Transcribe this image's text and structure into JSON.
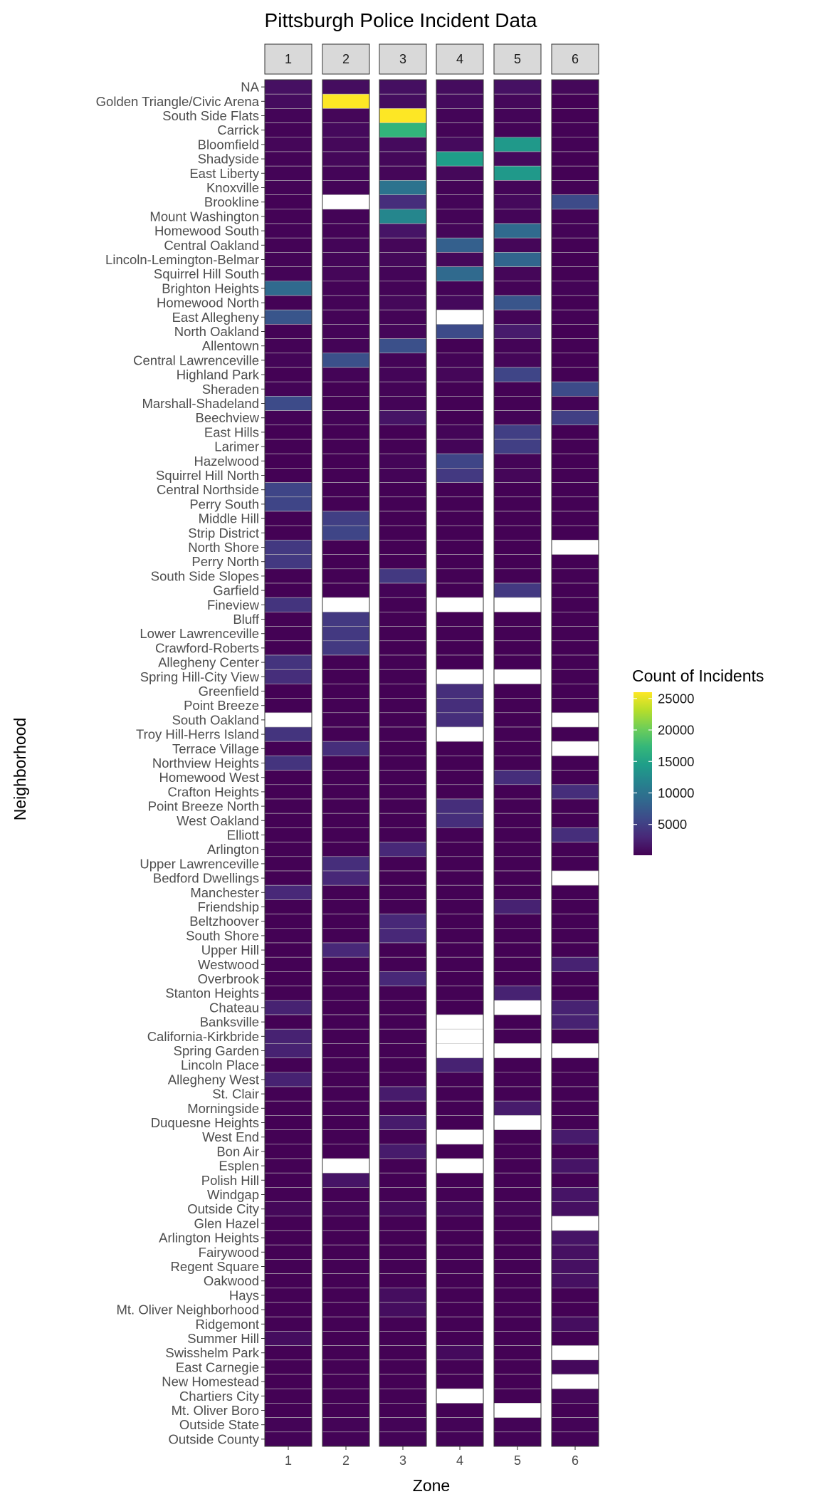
{
  "chart_data": {
    "type": "heatmap",
    "title": "Pittsburgh Police Incident Data",
    "xlabel": "Zone",
    "ylabel": "Neighborhood",
    "zones": [
      "1",
      "2",
      "3",
      "4",
      "5",
      "6"
    ],
    "neighborhoods": [
      "NA",
      "Golden Triangle/Civic Arena",
      "South Side Flats",
      "Carrick",
      "Bloomfield",
      "Shadyside",
      "East Liberty",
      "Knoxville",
      "Brookline",
      "Mount Washington",
      "Homewood South",
      "Central Oakland",
      "Lincoln-Lemington-Belmar",
      "Squirrel Hill South",
      "Brighton Heights",
      "Homewood North",
      "East Allegheny",
      "North Oakland",
      "Allentown",
      "Central Lawrenceville",
      "Highland Park",
      "Sheraden",
      "Marshall-Shadeland",
      "Beechview",
      "East Hills",
      "Larimer",
      "Hazelwood",
      "Squirrel Hill North",
      "Central Northside",
      "Perry South",
      "Middle Hill",
      "Strip District",
      "North Shore",
      "Perry North",
      "South Side Slopes",
      "Garfield",
      "Fineview",
      "Bluff",
      "Lower Lawrenceville",
      "Crawford-Roberts",
      "Allegheny Center",
      "Spring Hill-City View",
      "Greenfield",
      "Point Breeze",
      "South Oakland",
      "Troy Hill-Herrs Island",
      "Terrace Village",
      "Northview Heights",
      "Homewood West",
      "Crafton Heights",
      "Point Breeze North",
      "West Oakland",
      "Elliott",
      "Arlington",
      "Upper Lawrenceville",
      "Bedford Dwellings",
      "Manchester",
      "Friendship",
      "Beltzhoover",
      "South Shore",
      "Upper Hill",
      "Westwood",
      "Overbrook",
      "Stanton Heights",
      "Chateau",
      "Banksville",
      "California-Kirkbride",
      "Spring Garden",
      "Lincoln Place",
      "Allegheny West",
      "St. Clair",
      "Morningside",
      "Duquesne Heights",
      "West End",
      "Bon Air",
      "Esplen",
      "Polish Hill",
      "Windgap",
      "Outside City",
      "Glen Hazel",
      "Arlington Heights",
      "Fairywood",
      "Regent Square",
      "Oakwood",
      "Hays",
      "Mt. Oliver Neighborhood",
      "Ridgemont",
      "Summer Hill",
      "Swisshelm Park",
      "East Carnegie",
      "New Homestead",
      "Chartiers City",
      "Mt. Oliver Boro",
      "Outside State",
      "Outside County"
    ],
    "values": [
      [
        1200,
        1000,
        1100,
        900,
        1300,
        600
      ],
      [
        900,
        26000,
        1000,
        800,
        600,
        200
      ],
      [
        400,
        500,
        26000,
        400,
        400,
        150
      ],
      [
        300,
        700,
        17000,
        300,
        300,
        250
      ],
      [
        500,
        600,
        800,
        800,
        14000,
        250
      ],
      [
        350,
        600,
        600,
        14500,
        800,
        150
      ],
      [
        300,
        400,
        500,
        600,
        14000,
        200
      ],
      [
        300,
        400,
        10000,
        300,
        400,
        250
      ],
      [
        250,
        null,
        3500,
        400,
        700,
        6000
      ],
      [
        250,
        300,
        12000,
        300,
        400,
        250
      ],
      [
        300,
        350,
        1500,
        500,
        9000,
        300
      ],
      [
        250,
        400,
        500,
        8000,
        500,
        200
      ],
      [
        300,
        400,
        600,
        600,
        8500,
        200
      ],
      [
        350,
        500,
        400,
        9000,
        500,
        150
      ],
      [
        9000,
        300,
        300,
        300,
        300,
        300
      ],
      [
        250,
        300,
        600,
        700,
        7000,
        200
      ],
      [
        7000,
        300,
        300,
        null,
        400,
        250
      ],
      [
        250,
        300,
        500,
        6000,
        2000,
        150
      ],
      [
        250,
        300,
        6500,
        200,
        300,
        150
      ],
      [
        400,
        6500,
        300,
        300,
        500,
        150
      ],
      [
        200,
        300,
        400,
        500,
        5500,
        150
      ],
      [
        300,
        200,
        300,
        200,
        200,
        6000
      ],
      [
        6000,
        200,
        300,
        200,
        200,
        250
      ],
      [
        300,
        300,
        1500,
        200,
        300,
        5000
      ],
      [
        200,
        200,
        200,
        400,
        5000,
        150
      ],
      [
        200,
        200,
        200,
        400,
        5000,
        150
      ],
      [
        200,
        200,
        400,
        5500,
        300,
        150
      ],
      [
        200,
        200,
        300,
        4500,
        500,
        150
      ],
      [
        5500,
        200,
        200,
        200,
        200,
        200
      ],
      [
        5500,
        200,
        200,
        200,
        200,
        200
      ],
      [
        200,
        5000,
        200,
        200,
        200,
        150
      ],
      [
        200,
        5500,
        200,
        200,
        200,
        150
      ],
      [
        4500,
        200,
        200,
        200,
        200,
        null
      ],
      [
        4500,
        200,
        200,
        200,
        200,
        200
      ],
      [
        200,
        200,
        4500,
        200,
        200,
        200
      ],
      [
        200,
        200,
        300,
        200,
        4500,
        150
      ],
      [
        4000,
        null,
        200,
        null,
        null,
        200
      ],
      [
        200,
        4500,
        200,
        200,
        200,
        150
      ],
      [
        200,
        4500,
        200,
        200,
        200,
        150
      ],
      [
        200,
        4500,
        200,
        200,
        200,
        150
      ],
      [
        4000,
        200,
        200,
        200,
        200,
        150
      ],
      [
        3500,
        200,
        200,
        null,
        null,
        200
      ],
      [
        200,
        200,
        200,
        3500,
        200,
        150
      ],
      [
        200,
        200,
        200,
        3500,
        200,
        150
      ],
      [
        null,
        200,
        200,
        3500,
        200,
        null
      ],
      [
        4000,
        200,
        200,
        null,
        200,
        200
      ],
      [
        200,
        3500,
        200,
        200,
        200,
        null
      ],
      [
        4000,
        200,
        200,
        200,
        200,
        200
      ],
      [
        200,
        200,
        200,
        200,
        3500,
        150
      ],
      [
        200,
        200,
        200,
        200,
        200,
        3500
      ],
      [
        200,
        200,
        200,
        3500,
        200,
        150
      ],
      [
        200,
        200,
        200,
        3500,
        200,
        150
      ],
      [
        200,
        200,
        200,
        200,
        200,
        3500
      ],
      [
        200,
        200,
        3000,
        200,
        200,
        150
      ],
      [
        200,
        3500,
        200,
        200,
        200,
        150
      ],
      [
        200,
        3000,
        200,
        200,
        200,
        null
      ],
      [
        3000,
        200,
        200,
        200,
        200,
        200
      ],
      [
        200,
        200,
        200,
        200,
        2500,
        150
      ],
      [
        200,
        200,
        3000,
        200,
        200,
        200
      ],
      [
        200,
        200,
        3000,
        200,
        200,
        200
      ],
      [
        200,
        3000,
        200,
        200,
        200,
        150
      ],
      [
        200,
        200,
        200,
        200,
        200,
        2500
      ],
      [
        200,
        200,
        3000,
        200,
        200,
        200
      ],
      [
        200,
        200,
        200,
        200,
        2500,
        150
      ],
      [
        2500,
        200,
        200,
        200,
        null,
        2500
      ],
      [
        200,
        200,
        200,
        null,
        200,
        2500
      ],
      [
        2500,
        200,
        200,
        null,
        200,
        200
      ],
      [
        2500,
        200,
        200,
        null,
        null,
        null
      ],
      [
        200,
        200,
        200,
        2500,
        200,
        150
      ],
      [
        2500,
        200,
        200,
        200,
        200,
        200
      ],
      [
        200,
        200,
        2000,
        200,
        200,
        200
      ],
      [
        200,
        200,
        200,
        200,
        2000,
        150
      ],
      [
        200,
        200,
        2000,
        200,
        null,
        200
      ],
      [
        200,
        200,
        200,
        null,
        200,
        2000
      ],
      [
        200,
        200,
        2000,
        200,
        200,
        150
      ],
      [
        200,
        null,
        200,
        null,
        200,
        1500
      ],
      [
        200,
        1500,
        200,
        200,
        200,
        150
      ],
      [
        200,
        200,
        200,
        200,
        200,
        1500
      ],
      [
        600,
        500,
        800,
        700,
        500,
        1200
      ],
      [
        200,
        200,
        200,
        200,
        200,
        null
      ],
      [
        200,
        200,
        200,
        200,
        200,
        1500
      ],
      [
        200,
        200,
        200,
        200,
        200,
        1200
      ],
      [
        200,
        200,
        200,
        200,
        200,
        1200
      ],
      [
        200,
        200,
        200,
        200,
        200,
        1200
      ],
      [
        200,
        200,
        1000,
        200,
        200,
        150
      ],
      [
        200,
        200,
        1000,
        200,
        200,
        200
      ],
      [
        200,
        200,
        200,
        200,
        200,
        1000
      ],
      [
        1000,
        200,
        200,
        200,
        200,
        200
      ],
      [
        200,
        200,
        200,
        800,
        200,
        null
      ],
      [
        200,
        200,
        200,
        200,
        200,
        700
      ],
      [
        200,
        200,
        200,
        200,
        200,
        null
      ],
      [
        200,
        200,
        200,
        null,
        200,
        500
      ],
      [
        200,
        200,
        200,
        200,
        null,
        200
      ],
      [
        300,
        300,
        300,
        300,
        300,
        300
      ],
      [
        300,
        300,
        300,
        300,
        300,
        300
      ]
    ],
    "na_cells": "white",
    "legend": {
      "title": "Count of Incidents",
      "ticks": [
        "5000",
        "10000",
        "15000",
        "20000",
        "25000"
      ],
      "tick_values": [
        5000,
        10000,
        15000,
        20000,
        25000
      ],
      "range": [
        100,
        26000
      ],
      "colormap": "viridis",
      "placement": "right"
    }
  }
}
